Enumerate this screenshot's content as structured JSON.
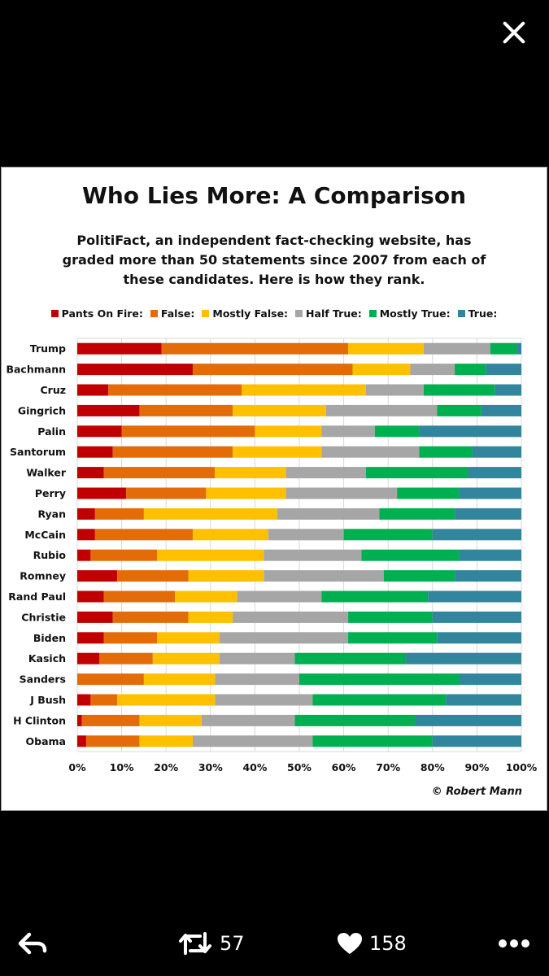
{
  "chart_data": {
    "type": "bar",
    "orientation": "horizontal",
    "stacked": true,
    "title": "Who Lies More: A Comparison",
    "subtitle": "PolitiFact,  an independent fact-checking website, has graded more than 50 statements since 2007 from each of these candidates. Here is how they rank.",
    "credit": "© Robert Mann",
    "categories": [
      "Trump",
      "Bachmann",
      "Cruz",
      "Gingrich",
      "Palin",
      "Santorum",
      "Walker",
      "Perry",
      "Ryan",
      "McCain",
      "Rubio",
      "Romney",
      "Rand Paul",
      "Christie",
      "Biden",
      "Kasich",
      "Sanders",
      "J Bush",
      "H Clinton",
      "Obama"
    ],
    "series": [
      {
        "name": "Pants On Fire:",
        "color": "#c00000",
        "values": [
          19,
          26,
          7,
          14,
          10,
          8,
          6,
          11,
          4,
          4,
          3,
          9,
          6,
          8,
          6,
          5,
          0,
          3,
          1,
          2
        ]
      },
      {
        "name": "False:",
        "color": "#e36c09",
        "values": [
          42,
          36,
          30,
          21,
          30,
          27,
          25,
          18,
          11,
          22,
          15,
          16,
          16,
          17,
          12,
          12,
          15,
          6,
          13,
          12
        ]
      },
      {
        "name": "Mostly False:",
        "color": "#ffc000",
        "values": [
          17,
          13,
          28,
          21,
          15,
          20,
          16,
          18,
          30,
          17,
          24,
          17,
          14,
          10,
          14,
          15,
          16,
          22,
          14,
          12
        ]
      },
      {
        "name": "Half True:",
        "color": "#a6a6a6",
        "values": [
          15,
          10,
          13,
          25,
          12,
          22,
          18,
          25,
          23,
          17,
          22,
          27,
          19,
          26,
          29,
          17,
          19,
          22,
          21,
          27
        ]
      },
      {
        "name": "Mostly True:",
        "color": "#00b050",
        "values": [
          6,
          7,
          16,
          10,
          10,
          12,
          23,
          14,
          17,
          20,
          22,
          16,
          24,
          19,
          20,
          25,
          36,
          30,
          27,
          27
        ]
      },
      {
        "name": "True:",
        "color": "#31859c",
        "values": [
          1,
          8,
          6,
          9,
          23,
          11,
          12,
          14,
          15,
          20,
          14,
          15,
          21,
          20,
          19,
          26,
          14,
          17,
          24,
          20
        ]
      }
    ],
    "x_ticks": [
      "0%",
      "10%",
      "20%",
      "30%",
      "40%",
      "50%",
      "60%",
      "70%",
      "80%",
      "90%",
      "100%"
    ],
    "xlim": [
      0,
      100
    ],
    "legend_position": "top",
    "grid": true
  },
  "bottom_bar": {
    "retweet_count": "57",
    "like_count": "158"
  }
}
